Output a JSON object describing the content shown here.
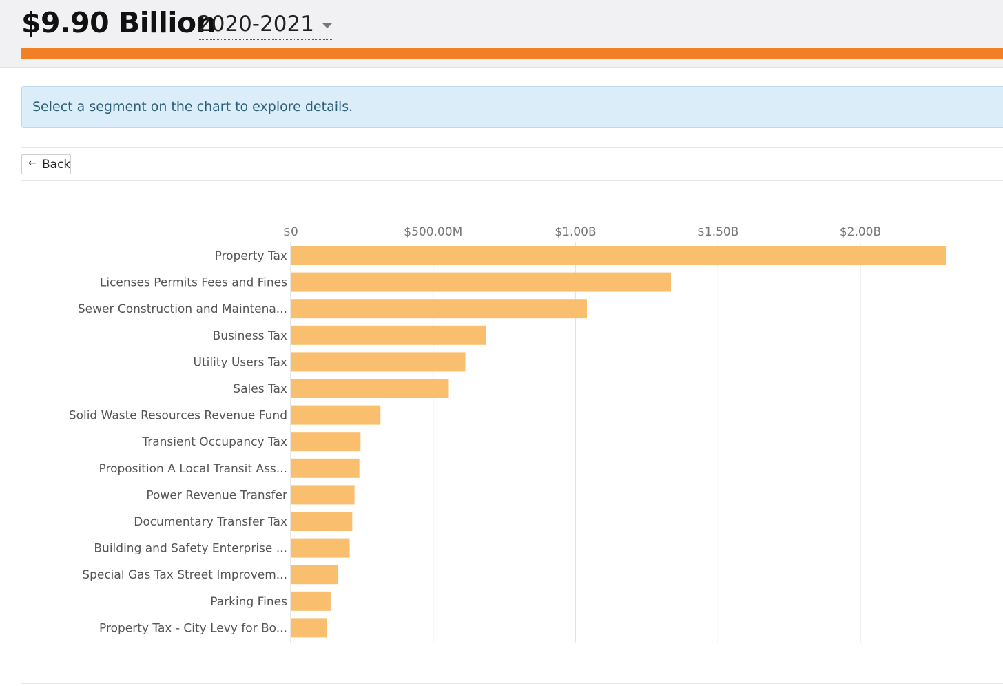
{
  "header": {
    "total": "$9.90 Billion",
    "year": "2020-2021",
    "accent_color": "#f18024"
  },
  "info": {
    "message": "Select a segment on the chart to explore details."
  },
  "nav": {
    "back_label": "Back"
  },
  "chart_data": {
    "type": "bar",
    "orientation": "horizontal",
    "title": "",
    "xlabel": "",
    "ylabel": "",
    "xlim": [
      0,
      2300000000
    ],
    "x_ticks": [
      0,
      500000000,
      1000000000,
      1500000000,
      2000000000
    ],
    "x_tick_labels": [
      "$0",
      "$500.00M",
      "$1.00B",
      "$1.50B",
      "$2.00B"
    ],
    "grid": true,
    "bar_color": "#f9bf6e",
    "categories": [
      "Property Tax",
      "Licenses Permits Fees and Fines",
      "Sewer Construction and Maintena...",
      "Business Tax",
      "Utility Users Tax",
      "Sales Tax",
      "Solid Waste Resources Revenue Fund",
      "Transient Occupancy Tax",
      "Proposition A Local Transit Ass...",
      "Power Revenue Transfer",
      "Documentary Transfer Tax",
      "Building and Safety Enterprise ...",
      "Special Gas Tax Street Improvem...",
      "Parking Fines",
      "Property Tax - City Levy for Bo..."
    ],
    "values": [
      2300000000,
      1335000000,
      1040000000,
      685000000,
      613000000,
      555000000,
      315000000,
      245000000,
      241000000,
      224000000,
      216000000,
      207000000,
      167000000,
      140000000,
      128000000
    ]
  }
}
